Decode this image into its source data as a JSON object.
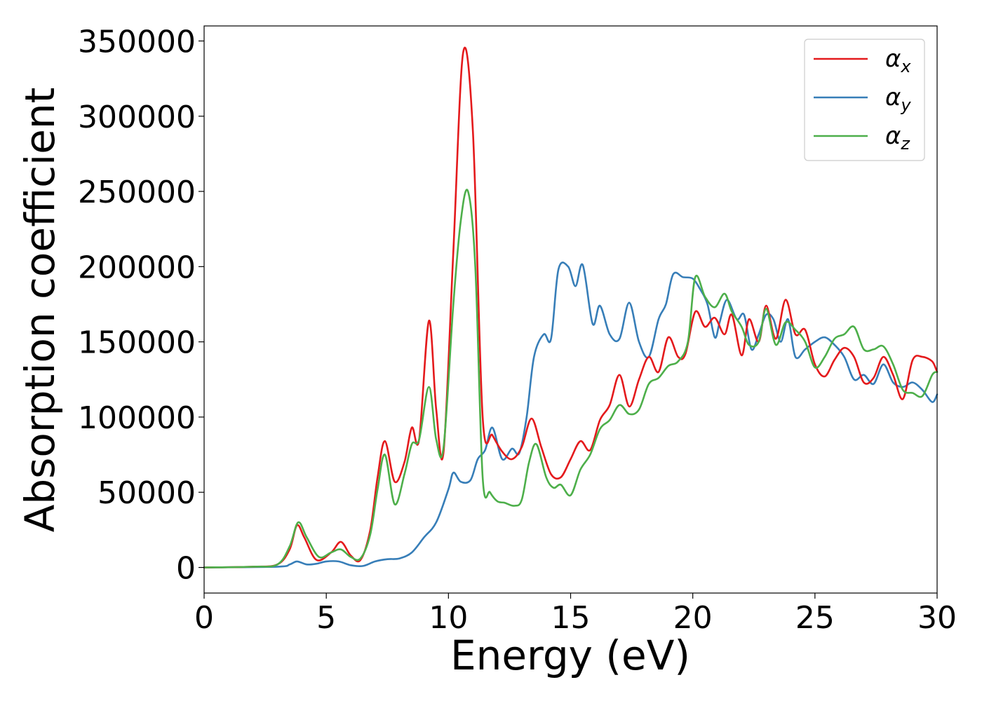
{
  "chart_data": {
    "type": "line",
    "title": "",
    "xlabel": "Energy (eV)",
    "ylabel": "Absorption coefficient",
    "xlim": [
      0,
      30
    ],
    "ylim": [
      -17000,
      360000
    ],
    "xticks": [
      0,
      5,
      10,
      15,
      20,
      25,
      30
    ],
    "xtick_labels": [
      "0",
      "5",
      "10",
      "15",
      "20",
      "25",
      "30"
    ],
    "yticks": [
      0,
      50000,
      100000,
      150000,
      200000,
      250000,
      300000,
      350000
    ],
    "ytick_labels": [
      "0",
      "50000",
      "100000",
      "150000",
      "200000",
      "250000",
      "300000",
      "350000"
    ],
    "grid": false,
    "legend_position": "top-right",
    "series": [
      {
        "name": "αx",
        "symbol": "α",
        "subscript": "x",
        "color": "#e41a1c",
        "x": [
          0,
          2,
          3,
          3.5,
          3.8,
          4.1,
          4.6,
          5.2,
          5.6,
          6.0,
          6.4,
          6.8,
          7.1,
          7.4,
          7.8,
          8.2,
          8.5,
          8.8,
          9.2,
          9.5,
          9.8,
          10.2,
          10.6,
          11.0,
          11.4,
          11.8,
          12.2,
          12.6,
          13.0,
          13.4,
          13.8,
          14.2,
          14.6,
          15.0,
          15.4,
          15.8,
          16.2,
          16.6,
          17.0,
          17.4,
          17.8,
          18.2,
          18.6,
          19.0,
          19.4,
          19.7,
          20.1,
          20.5,
          20.9,
          21.3,
          21.6,
          22.0,
          22.3,
          22.7,
          23.0,
          23.4,
          23.8,
          24.2,
          24.6,
          25.0,
          25.4,
          25.8,
          26.2,
          26.6,
          27.0,
          27.4,
          27.8,
          28.2,
          28.6,
          29.0,
          29.4,
          29.8,
          30.0
        ],
        "y": [
          0,
          500,
          2000,
          12000,
          28000,
          20000,
          5000,
          10000,
          17000,
          8000,
          5000,
          25000,
          60000,
          84000,
          57000,
          70000,
          93000,
          85000,
          164000,
          105000,
          77000,
          210000,
          342000,
          290000,
          100000,
          88000,
          77000,
          72000,
          80000,
          99000,
          80000,
          62000,
          60000,
          72000,
          84000,
          78000,
          98000,
          108000,
          128000,
          107000,
          125000,
          140000,
          130000,
          153000,
          140000,
          142000,
          170000,
          160000,
          166000,
          155000,
          168000,
          141000,
          165000,
          150000,
          174000,
          152000,
          178000,
          155000,
          158000,
          135000,
          127000,
          138000,
          146000,
          140000,
          123000,
          126000,
          140000,
          128000,
          112000,
          138000,
          140000,
          137000,
          130000
        ]
      },
      {
        "name": "αy",
        "symbol": "α",
        "subscript": "y",
        "color": "#377eb8",
        "x": [
          0,
          3,
          3.5,
          3.8,
          4.2,
          4.6,
          5.0,
          5.5,
          6.0,
          6.5,
          7.0,
          7.5,
          8.0,
          8.5,
          9.0,
          9.5,
          10.0,
          10.2,
          10.5,
          10.9,
          11.2,
          11.5,
          11.8,
          12.2,
          12.6,
          12.9,
          13.2,
          13.5,
          13.9,
          14.2,
          14.5,
          14.9,
          15.2,
          15.5,
          15.9,
          16.2,
          16.6,
          17.0,
          17.4,
          17.8,
          18.2,
          18.6,
          18.9,
          19.2,
          19.6,
          20.0,
          20.3,
          20.6,
          20.9,
          21.1,
          21.4,
          21.8,
          22.1,
          22.4,
          22.7,
          23.0,
          23.3,
          23.6,
          23.9,
          24.2,
          24.6,
          25.0,
          25.4,
          25.8,
          26.2,
          26.6,
          27.0,
          27.4,
          27.8,
          28.2,
          28.6,
          29.0,
          29.4,
          29.8,
          30.0
        ],
        "y": [
          0,
          500,
          2000,
          4000,
          2000,
          2500,
          4000,
          4000,
          1500,
          1000,
          4000,
          5500,
          6000,
          10000,
          20000,
          30000,
          52000,
          63000,
          57000,
          58000,
          72000,
          78000,
          93000,
          72000,
          79000,
          76000,
          100000,
          140000,
          155000,
          152000,
          198000,
          200000,
          187000,
          201000,
          162000,
          174000,
          155000,
          152000,
          176000,
          150000,
          140000,
          165000,
          175000,
          195000,
          193000,
          192000,
          185000,
          175000,
          153000,
          163000,
          178000,
          165000,
          168000,
          145000,
          155000,
          168000,
          165000,
          150000,
          165000,
          140000,
          145000,
          150000,
          153000,
          148000,
          140000,
          125000,
          128000,
          122000,
          135000,
          123000,
          120000,
          123000,
          118000,
          110000,
          115000
        ]
      },
      {
        "name": "αz",
        "symbol": "α",
        "subscript": "z",
        "color": "#4daf4a",
        "x": [
          0,
          2,
          3,
          3.5,
          3.85,
          4.2,
          4.7,
          5.2,
          5.6,
          6.0,
          6.4,
          6.8,
          7.1,
          7.4,
          7.8,
          8.2,
          8.5,
          8.8,
          9.2,
          9.5,
          9.8,
          10.2,
          10.5,
          10.8,
          11.1,
          11.4,
          11.7,
          12.0,
          12.3,
          12.7,
          13.0,
          13.3,
          13.6,
          14.0,
          14.3,
          14.6,
          15.0,
          15.4,
          15.8,
          16.2,
          16.6,
          17.0,
          17.4,
          17.8,
          18.2,
          18.6,
          19.0,
          19.4,
          19.8,
          20.1,
          20.5,
          20.9,
          21.3,
          21.6,
          22.0,
          22.3,
          22.7,
          23.0,
          23.4,
          23.8,
          24.2,
          24.6,
          25.0,
          25.4,
          25.8,
          26.2,
          26.6,
          27.0,
          27.4,
          27.8,
          28.2,
          28.6,
          29.0,
          29.4,
          29.8,
          30.0
        ],
        "y": [
          0,
          500,
          2000,
          14000,
          30000,
          20000,
          7000,
          10000,
          12000,
          7000,
          6000,
          22000,
          52000,
          75000,
          42000,
          62000,
          82000,
          85000,
          120000,
          85000,
          80000,
          175000,
          230000,
          250000,
          200000,
          60000,
          50000,
          44000,
          43000,
          41000,
          45000,
          70000,
          82000,
          60000,
          53000,
          55000,
          48000,
          65000,
          75000,
          92000,
          98000,
          108000,
          102000,
          105000,
          122000,
          126000,
          134000,
          137000,
          150000,
          193000,
          180000,
          173000,
          182000,
          170000,
          160000,
          148000,
          150000,
          172000,
          148000,
          163000,
          158000,
          150000,
          133000,
          140000,
          152000,
          155000,
          160000,
          145000,
          145000,
          147000,
          135000,
          118000,
          116000,
          114000,
          128000,
          130000
        ]
      }
    ]
  }
}
